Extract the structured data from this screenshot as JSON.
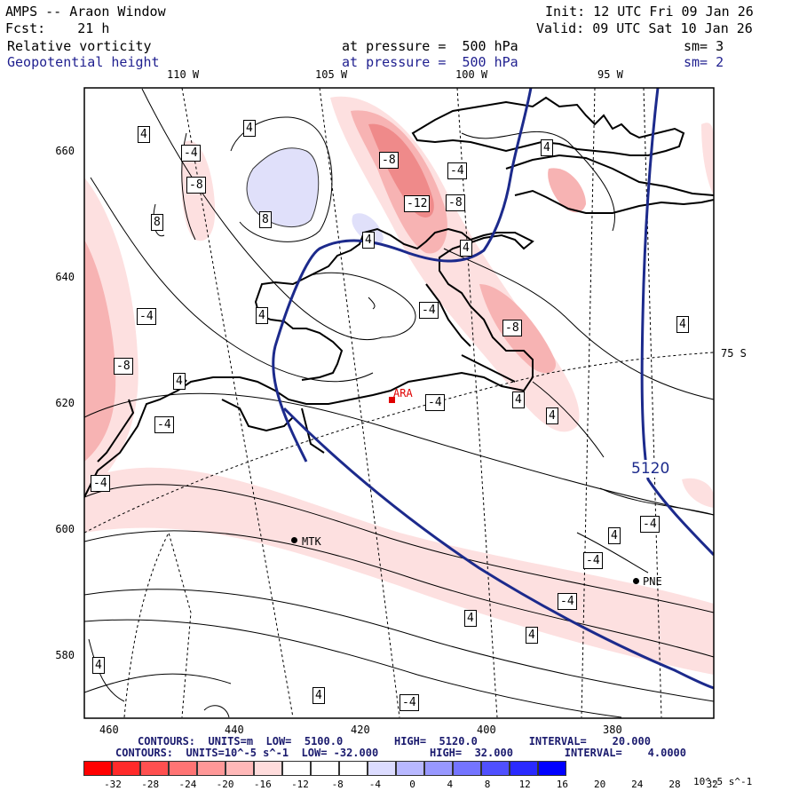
{
  "header": {
    "line1_left": "AMPS -- Araon Window",
    "line1_right": "Init: 12 UTC Fri 09 Jan 26",
    "line2_left": "Fcst:    21 h",
    "line2_right": "Valid: 09 UTC Sat 10 Jan 26",
    "field1_name": "Relative vorticity",
    "field1_pressure": "at pressure =  500 hPa",
    "field1_smooth": "sm= 3",
    "field2_name": "Geopotential height",
    "field2_pressure": "at pressure =  500 hPa",
    "field2_smooth": "sm= 2"
  },
  "lon_labels": [
    "110 W",
    "105 W",
    "100 W",
    "95 W"
  ],
  "lat_label_right": "75 S",
  "y_ticks": [
    "660",
    "640",
    "620",
    "600",
    "580"
  ],
  "x_ticks": [
    "460",
    "440",
    "420",
    "400",
    "380"
  ],
  "stations": {
    "ara": "ARA",
    "mtk": "MTK",
    "pne": "PNE"
  },
  "height_contour_label": "5120",
  "vorticity_labels": [
    "4",
    "-4",
    "4",
    "-8",
    "8",
    "8",
    "4",
    "-8",
    "-4",
    "-12",
    "-8",
    "-4",
    "4",
    "-4",
    "-8",
    "4",
    "4",
    "4",
    "-8",
    "-4",
    "-4",
    "4",
    "-4",
    "4",
    "4",
    "4",
    "-4",
    "-4",
    "-4",
    "4",
    "4",
    "4",
    "4",
    "-4"
  ],
  "footer": {
    "line1": "CONTOURS:  UNITS=m  LOW=  5100.0        HIGH=  5120.0        INTERVAL=    20.000",
    "line2": "CONTOURS:  UNITS=10^-5 s^-1  LOW= -32.000        HIGH=  32.000        INTERVAL=    4.0000"
  },
  "colorbar": {
    "labels": [
      "-32",
      "-28",
      "-24",
      "-20",
      "-16",
      "-12",
      "-8",
      "-4",
      "0",
      "4",
      "8",
      "12",
      "16",
      "20",
      "24",
      "28",
      "32"
    ],
    "units": "10^-5 s^-1",
    "colors": [
      "#ff0000",
      "#ff2a2a",
      "#ff5050",
      "#ff7474",
      "#ff9898",
      "#ffb8b8",
      "#ffdcdc",
      "#ffffff",
      "#ffffff",
      "#ffffff",
      "#dcdcff",
      "#b8b8ff",
      "#9898ff",
      "#7474ff",
      "#5050ff",
      "#2a2aff",
      "#0000ff"
    ]
  },
  "colors": {
    "height_contour": "#1c2a8c",
    "station_red": "#e00000",
    "neg_fill_light": "#fde0e0",
    "neg_fill_mid": "#f7b3b3",
    "neg_fill_dark": "#ef8a8a",
    "pos_fill": "#e0e0fa"
  }
}
